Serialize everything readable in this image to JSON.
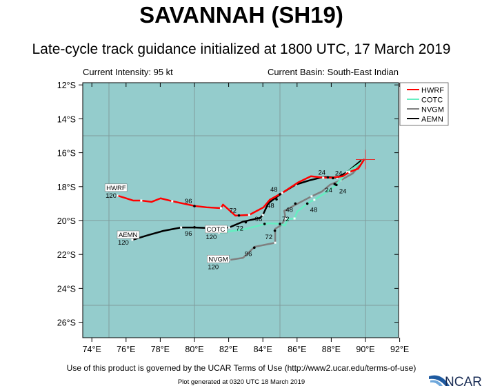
{
  "title": "SAVANNAH (SH19)",
  "subtitle": "Late-cycle track guidance initialized at 1800 UTC, 17 March 2019",
  "current_intensity": "Current Intensity: 95 kt",
  "current_basin": "Current Basin: South-East Indian",
  "footer": {
    "terms": "Use of this product is governed by the UCAR Terms of Use (http://www2.ucar.edu/terms-of-use)",
    "generated": "Plot generated at 0320 UTC   18 March 2019",
    "logo": "NCAR"
  },
  "chart_data": {
    "type": "map-track",
    "xlim": [
      73.7,
      92.1
    ],
    "ylim": [
      -26.9,
      -11.9
    ],
    "x_ticks": [
      74,
      76,
      78,
      80,
      82,
      84,
      86,
      88,
      90,
      92
    ],
    "x_tick_labels": [
      "74°E",
      "76°E",
      "78°E",
      "80°E",
      "82°E",
      "84°E",
      "86°E",
      "88°E",
      "90°E",
      "92°E"
    ],
    "y_ticks": [
      -12,
      -14,
      -16,
      -18,
      -20,
      -22,
      -24,
      -26
    ],
    "y_tick_labels": [
      "12°S",
      "14°S",
      "16°S",
      "18°S",
      "20°S",
      "22°S",
      "24°S",
      "26°S"
    ],
    "grid_lon": [
      75,
      80,
      85,
      90
    ],
    "grid_lat": [
      -15,
      -20,
      -25
    ],
    "ocean_color": "#94cccc",
    "grid_color": "#7f9c9c",
    "legend_position": "top-right",
    "initial_position": {
      "lon": 90.0,
      "lat": -16.4
    },
    "end_label": "120",
    "series": [
      {
        "name": "HWRF",
        "color": "#ff0000",
        "lon": [
          89.94,
          89.58,
          89.06,
          88.66,
          88.02,
          87.53,
          86.81,
          86.05,
          85.13,
          84.4,
          84.04,
          83.2,
          82.39,
          81.67,
          81.55,
          80.71,
          80.02,
          78.7,
          78.02,
          77.49,
          76.89,
          76.41,
          75.89,
          75.49
        ],
        "lat": [
          -16.37,
          -16.94,
          -17.14,
          -17.39,
          -17.47,
          -17.47,
          -17.39,
          -17.76,
          -18.37,
          -18.78,
          -19.22,
          -19.67,
          -19.71,
          -19.06,
          -19.27,
          -19.22,
          -19.14,
          -18.86,
          -18.69,
          -18.9,
          -18.82,
          -18.82,
          -18.65,
          -18.53
        ],
        "hours": [
          {
            "h": "24",
            "lon": 87.8,
            "lat": -17.45
          },
          {
            "h": "48",
            "lon": 85.0,
            "lat": -18.45
          },
          {
            "h": "72",
            "lon": 82.6,
            "lat": -19.7
          },
          {
            "h": "96",
            "lon": 80.0,
            "lat": -19.15
          }
        ]
      },
      {
        "name": "COTC",
        "color": "#66eec2",
        "lon": [
          89.94,
          89.54,
          88.94,
          88.22,
          87.53,
          87.01,
          86.73,
          86.01,
          85.85,
          85.45,
          85.29,
          85.0,
          84.32,
          82.84,
          81.43
        ],
        "lat": [
          -16.41,
          -16.73,
          -17.14,
          -17.96,
          -18.45,
          -18.78,
          -18.9,
          -19.47,
          -19.88,
          -19.92,
          -20.29,
          -20.2,
          -20.16,
          -20.53,
          -20.73
        ],
        "hours": [
          {
            "h": "24",
            "lon": 88.2,
            "lat": -17.85
          },
          {
            "h": "48",
            "lon": 86.6,
            "lat": -19.0
          },
          {
            "h": "72",
            "lon": 85.0,
            "lat": -20.2
          },
          {
            "h": "96",
            "lon": 84.1,
            "lat": -20.2
          }
        ]
      },
      {
        "name": "NVGM",
        "color": "#7f7f7f",
        "lon": [
          89.86,
          89.26,
          88.54,
          87.94,
          87.45,
          86.85,
          85.85,
          85.25,
          85.33,
          85.04,
          84.72,
          84.72,
          83.52,
          82.84,
          82.03
        ],
        "lat": [
          -16.49,
          -17.22,
          -17.63,
          -17.88,
          -18.29,
          -18.57,
          -19.1,
          -19.43,
          -19.88,
          -20.29,
          -20.49,
          -21.31,
          -21.55,
          -22.2,
          -22.33
        ],
        "hours": [
          {
            "h": "24",
            "lon": 88.3,
            "lat": -17.9
          },
          {
            "h": "48",
            "lon": 85.9,
            "lat": -19.0
          },
          {
            "h": "72",
            "lon": 84.7,
            "lat": -20.6
          },
          {
            "h": "96",
            "lon": 83.5,
            "lat": -21.6
          }
        ]
      },
      {
        "name": "AEMN",
        "color": "#000000",
        "lon": [
          89.76,
          88.94,
          88.34,
          87.53,
          86.73,
          85.93,
          85.13,
          84.32,
          84.0,
          83.84,
          82.8,
          82.03,
          81.11,
          80.02,
          79.22,
          78.18,
          77.29,
          76.37
        ],
        "lat": [
          -16.45,
          -17.14,
          -17.47,
          -17.43,
          -17.63,
          -17.88,
          -18.37,
          -18.98,
          -19.67,
          -19.84,
          -20.08,
          -20.41,
          -20.45,
          -20.41,
          -20.41,
          -20.61,
          -20.86,
          -21.14
        ],
        "hours": [
          {
            "h": "24",
            "lon": 88.1,
            "lat": -17.5
          },
          {
            "h": "48",
            "lon": 84.8,
            "lat": -18.75
          },
          {
            "h": "72",
            "lon": 83.0,
            "lat": -20.1
          },
          {
            "h": "96",
            "lon": 80.0,
            "lat": -20.4
          }
        ]
      }
    ]
  }
}
